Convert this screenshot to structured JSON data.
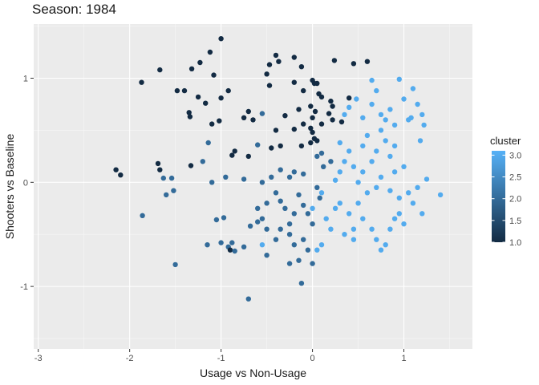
{
  "chart_data": {
    "type": "scatter",
    "title": "Season: 1984",
    "xlabel": "Usage vs Non-Usage",
    "ylabel": "Shooters vs Baseline",
    "xlim": [
      -3.05,
      1.75
    ],
    "ylim": [
      -1.6,
      1.52
    ],
    "x_ticks": [
      -3,
      -2,
      -1,
      0,
      1
    ],
    "x_tick_labels": [
      "-3",
      "-2",
      "-1",
      "0",
      "1"
    ],
    "y_ticks": [
      -1,
      0,
      1
    ],
    "y_tick_labels": [
      "-1",
      "0",
      "1"
    ],
    "grid": true,
    "legend": {
      "title": "cluster",
      "position": "right",
      "min": 1.0,
      "max": 3.1,
      "ticks": [
        1.0,
        1.5,
        2.0,
        2.5,
        3.0
      ],
      "tick_labels": [
        "1.0",
        "1.5",
        "2.0",
        "2.5",
        "3.0"
      ],
      "color_low": "#132b43",
      "color_high": "#56b1f7"
    },
    "colors": {
      "panel_background": "#ebebeb",
      "grid_major": "#ffffff",
      "low": "#132b43",
      "high": "#56b1f7"
    },
    "points": [
      {
        "x": -1.0,
        "y": 1.38,
        "c": 1
      },
      {
        "x": -1.12,
        "y": 1.25,
        "c": 1
      },
      {
        "x": -1.23,
        "y": 1.15,
        "c": 1
      },
      {
        "x": -1.32,
        "y": 1.09,
        "c": 1
      },
      {
        "x": -1.67,
        "y": 1.08,
        "c": 1
      },
      {
        "x": -1.87,
        "y": 0.96,
        "c": 1
      },
      {
        "x": -1.08,
        "y": 1.03,
        "c": 1
      },
      {
        "x": -1.25,
        "y": 0.82,
        "c": 1
      },
      {
        "x": -1.0,
        "y": 0.81,
        "c": 1
      },
      {
        "x": -1.48,
        "y": 0.88,
        "c": 1
      },
      {
        "x": -1.4,
        "y": 0.88,
        "c": 1
      },
      {
        "x": -1.17,
        "y": 0.76,
        "c": 1
      },
      {
        "x": -1.35,
        "y": 0.67,
        "c": 1
      },
      {
        "x": -1.34,
        "y": 0.63,
        "c": 1
      },
      {
        "x": -1.1,
        "y": 0.56,
        "c": 1
      },
      {
        "x": -1.02,
        "y": 0.59,
        "c": 1
      },
      {
        "x": -0.92,
        "y": 0.88,
        "c": 1
      },
      {
        "x": -0.7,
        "y": 0.68,
        "c": 1
      },
      {
        "x": -0.75,
        "y": 0.62,
        "c": 1
      },
      {
        "x": -0.65,
        "y": 0.6,
        "c": 1
      },
      {
        "x": -0.55,
        "y": 0.66,
        "c": 2
      },
      {
        "x": -0.47,
        "y": 0.93,
        "c": 1
      },
      {
        "x": -0.47,
        "y": 1.13,
        "c": 1
      },
      {
        "x": -0.4,
        "y": 1.22,
        "c": 1
      },
      {
        "x": -0.37,
        "y": 1.16,
        "c": 1
      },
      {
        "x": -0.2,
        "y": 1.2,
        "c": 1
      },
      {
        "x": -0.12,
        "y": 1.11,
        "c": 1
      },
      {
        "x": -0.5,
        "y": 1.04,
        "c": 1
      },
      {
        "x": -0.2,
        "y": 0.96,
        "c": 1
      },
      {
        "x": -0.1,
        "y": 0.88,
        "c": 1
      },
      {
        "x": 0.0,
        "y": 0.98,
        "c": 1
      },
      {
        "x": 0.02,
        "y": 0.95,
        "c": 1
      },
      {
        "x": 0.05,
        "y": 0.95,
        "c": 1
      },
      {
        "x": 0.07,
        "y": 0.85,
        "c": 1
      },
      {
        "x": 0.1,
        "y": 0.82,
        "c": 1
      },
      {
        "x": -0.02,
        "y": 0.73,
        "c": 1
      },
      {
        "x": -0.15,
        "y": 0.7,
        "c": 1
      },
      {
        "x": 0.2,
        "y": 0.78,
        "c": 1
      },
      {
        "x": 0.22,
        "y": 0.73,
        "c": 1
      },
      {
        "x": 0.24,
        "y": 1.17,
        "c": 1
      },
      {
        "x": 0.45,
        "y": 1.14,
        "c": 1
      },
      {
        "x": 0.6,
        "y": 1.16,
        "c": 1
      },
      {
        "x": 0.4,
        "y": 0.81,
        "c": 1
      },
      {
        "x": 0.03,
        "y": 0.68,
        "c": 1
      },
      {
        "x": 0.0,
        "y": 0.62,
        "c": 1
      },
      {
        "x": -0.1,
        "y": 0.56,
        "c": 1
      },
      {
        "x": -0.02,
        "y": 0.52,
        "c": 1
      },
      {
        "x": -0.2,
        "y": 0.51,
        "c": 1
      },
      {
        "x": -0.4,
        "y": 0.5,
        "c": 1
      },
      {
        "x": -0.3,
        "y": 0.64,
        "c": 1
      },
      {
        "x": 0.1,
        "y": 0.56,
        "c": 1
      },
      {
        "x": 0.18,
        "y": 0.66,
        "c": 1
      },
      {
        "x": 0.22,
        "y": 0.6,
        "c": 1
      },
      {
        "x": 0.32,
        "y": 0.58,
        "c": 1
      },
      {
        "x": 0.05,
        "y": 0.4,
        "c": 1
      },
      {
        "x": 0.0,
        "y": 0.48,
        "c": 1
      },
      {
        "x": -0.12,
        "y": 0.35,
        "c": 1
      },
      {
        "x": -0.02,
        "y": 0.38,
        "c": 1
      },
      {
        "x": 0.02,
        "y": 0.42,
        "c": 1
      },
      {
        "x": -0.35,
        "y": 0.35,
        "c": 1
      },
      {
        "x": -0.45,
        "y": 0.33,
        "c": 1
      },
      {
        "x": -0.6,
        "y": 0.36,
        "c": 2
      },
      {
        "x": -0.85,
        "y": 0.3,
        "c": 1
      },
      {
        "x": -0.88,
        "y": 0.26,
        "c": 1
      },
      {
        "x": -1.14,
        "y": 0.38,
        "c": 2
      },
      {
        "x": -1.33,
        "y": 0.16,
        "c": 1
      },
      {
        "x": -1.2,
        "y": 0.2,
        "c": 2
      },
      {
        "x": -1.69,
        "y": 0.18,
        "c": 1
      },
      {
        "x": -1.67,
        "y": 0.12,
        "c": 1
      },
      {
        "x": -1.63,
        "y": 0.04,
        "c": 2
      },
      {
        "x": -1.54,
        "y": 0.04,
        "c": 2
      },
      {
        "x": -1.6,
        "y": -0.12,
        "c": 2
      },
      {
        "x": -1.52,
        "y": -0.08,
        "c": 2
      },
      {
        "x": -2.15,
        "y": 0.12,
        "c": 1
      },
      {
        "x": -2.1,
        "y": 0.07,
        "c": 1
      },
      {
        "x": -1.86,
        "y": -0.32,
        "c": 2
      },
      {
        "x": -1.5,
        "y": -0.79,
        "c": 2
      },
      {
        "x": -1.1,
        "y": 0.0,
        "c": 2
      },
      {
        "x": -1.05,
        "y": -0.36,
        "c": 2
      },
      {
        "x": -0.97,
        "y": -0.34,
        "c": 2
      },
      {
        "x": -0.7,
        "y": 0.25,
        "c": 1
      },
      {
        "x": -0.95,
        "y": 0.05,
        "c": 2
      },
      {
        "x": -0.75,
        "y": 0.03,
        "c": 2
      },
      {
        "x": -0.55,
        "y": 0.0,
        "c": 2
      },
      {
        "x": -0.45,
        "y": 0.05,
        "c": 2
      },
      {
        "x": -0.35,
        "y": 0.12,
        "c": 2
      },
      {
        "x": -0.25,
        "y": 0.05,
        "c": 2
      },
      {
        "x": -0.2,
        "y": 0.1,
        "c": 2
      },
      {
        "x": -0.1,
        "y": 0.08,
        "c": 2
      },
      {
        "x": 0.05,
        "y": 0.25,
        "c": 2
      },
      {
        "x": 0.1,
        "y": 0.28,
        "c": 2
      },
      {
        "x": 0.12,
        "y": 0.15,
        "c": 2
      },
      {
        "x": 0.2,
        "y": 0.2,
        "c": 2
      },
      {
        "x": -0.6,
        "y": -0.25,
        "c": 2
      },
      {
        "x": -0.55,
        "y": -0.35,
        "c": 2
      },
      {
        "x": -0.5,
        "y": -0.2,
        "c": 2
      },
      {
        "x": -0.4,
        "y": -0.1,
        "c": 2
      },
      {
        "x": -0.35,
        "y": -0.18,
        "c": 2
      },
      {
        "x": -0.3,
        "y": -0.25,
        "c": 2
      },
      {
        "x": -0.25,
        "y": -0.4,
        "c": 2
      },
      {
        "x": -0.2,
        "y": -0.3,
        "c": 2
      },
      {
        "x": -0.15,
        "y": -0.12,
        "c": 2
      },
      {
        "x": -0.1,
        "y": -0.22,
        "c": 2
      },
      {
        "x": -0.05,
        "y": -0.3,
        "c": 2
      },
      {
        "x": 0.0,
        "y": -0.4,
        "c": 2
      },
      {
        "x": 0.05,
        "y": -0.05,
        "c": 2
      },
      {
        "x": 0.08,
        "y": -0.15,
        "c": 2
      },
      {
        "x": -0.88,
        "y": -0.58,
        "c": 2
      },
      {
        "x": -0.92,
        "y": -0.62,
        "c": 2
      },
      {
        "x": -1.0,
        "y": -0.58,
        "c": 2
      },
      {
        "x": -0.9,
        "y": -0.65,
        "c": 1
      },
      {
        "x": -0.85,
        "y": -0.66,
        "c": 2
      },
      {
        "x": -0.75,
        "y": -0.62,
        "c": 2
      },
      {
        "x": -0.68,
        "y": -0.42,
        "c": 2
      },
      {
        "x": -0.6,
        "y": -0.38,
        "c": 2
      },
      {
        "x": -0.5,
        "y": -0.45,
        "c": 2
      },
      {
        "x": -0.4,
        "y": -0.55,
        "c": 2
      },
      {
        "x": -0.35,
        "y": -0.45,
        "c": 2
      },
      {
        "x": -0.25,
        "y": -0.5,
        "c": 2
      },
      {
        "x": -0.2,
        "y": -0.6,
        "c": 2
      },
      {
        "x": -0.15,
        "y": -0.75,
        "c": 2
      },
      {
        "x": -0.1,
        "y": -0.55,
        "c": 2
      },
      {
        "x": -0.05,
        "y": -0.65,
        "c": 2
      },
      {
        "x": -0.12,
        "y": -0.97,
        "c": 2
      },
      {
        "x": -0.25,
        "y": -0.78,
        "c": 2
      },
      {
        "x": -0.5,
        "y": -0.7,
        "c": 2
      },
      {
        "x": -0.7,
        "y": -1.12,
        "c": 2
      },
      {
        "x": -1.15,
        "y": -0.6,
        "c": 2
      },
      {
        "x": 0.0,
        "y": -0.78,
        "c": 2
      },
      {
        "x": 0.05,
        "y": -0.65,
        "c": 3
      },
      {
        "x": 0.1,
        "y": -0.6,
        "c": 3
      },
      {
        "x": -0.55,
        "y": -0.6,
        "c": 3
      },
      {
        "x": 0.3,
        "y": 0.38,
        "c": 3
      },
      {
        "x": 0.35,
        "y": 0.2,
        "c": 3
      },
      {
        "x": 0.4,
        "y": 0.3,
        "c": 3
      },
      {
        "x": 0.45,
        "y": 0.15,
        "c": 3
      },
      {
        "x": 0.3,
        "y": 0.1,
        "c": 3
      },
      {
        "x": 0.35,
        "y": 0.65,
        "c": 3
      },
      {
        "x": 0.4,
        "y": 0.72,
        "c": 3
      },
      {
        "x": 0.48,
        "y": 0.8,
        "c": 3
      },
      {
        "x": 0.55,
        "y": 0.62,
        "c": 3
      },
      {
        "x": 0.6,
        "y": 0.45,
        "c": 3
      },
      {
        "x": 0.65,
        "y": 0.98,
        "c": 3
      },
      {
        "x": 0.7,
        "y": 0.88,
        "c": 3
      },
      {
        "x": 0.75,
        "y": 0.5,
        "c": 3
      },
      {
        "x": 0.8,
        "y": 0.6,
        "c": 3
      },
      {
        "x": 0.85,
        "y": 0.7,
        "c": 3
      },
      {
        "x": 0.9,
        "y": 0.55,
        "c": 3
      },
      {
        "x": 0.95,
        "y": 0.99,
        "c": 3
      },
      {
        "x": 1.0,
        "y": 0.8,
        "c": 3
      },
      {
        "x": 1.05,
        "y": 0.6,
        "c": 3
      },
      {
        "x": 1.1,
        "y": 0.9,
        "c": 3
      },
      {
        "x": 1.15,
        "y": 0.75,
        "c": 3
      },
      {
        "x": 1.2,
        "y": 0.65,
        "c": 3
      },
      {
        "x": 1.22,
        "y": 0.55,
        "c": 3
      },
      {
        "x": 1.18,
        "y": 0.4,
        "c": 3
      },
      {
        "x": 0.8,
        "y": 0.4,
        "c": 3
      },
      {
        "x": 0.7,
        "y": 0.3,
        "c": 3
      },
      {
        "x": 0.65,
        "y": 0.2,
        "c": 3
      },
      {
        "x": 0.55,
        "y": 0.1,
        "c": 3
      },
      {
        "x": 0.5,
        "y": 0.0,
        "c": 3
      },
      {
        "x": 0.6,
        "y": -0.1,
        "c": 3
      },
      {
        "x": 0.7,
        "y": -0.05,
        "c": 3
      },
      {
        "x": 0.75,
        "y": 0.05,
        "c": 3
      },
      {
        "x": 0.85,
        "y": -0.08,
        "c": 3
      },
      {
        "x": 0.9,
        "y": 0.1,
        "c": 3
      },
      {
        "x": 0.95,
        "y": -0.15,
        "c": 3
      },
      {
        "x": 1.0,
        "y": 0.15,
        "c": 3
      },
      {
        "x": 1.05,
        "y": -0.1,
        "c": 3
      },
      {
        "x": 1.1,
        "y": -0.2,
        "c": 3
      },
      {
        "x": 1.15,
        "y": -0.05,
        "c": 3
      },
      {
        "x": 1.25,
        "y": 0.03,
        "c": 3
      },
      {
        "x": 1.4,
        "y": -0.12,
        "c": 3
      },
      {
        "x": 1.2,
        "y": -0.3,
        "c": 3
      },
      {
        "x": 0.3,
        "y": -0.2,
        "c": 3
      },
      {
        "x": 0.25,
        "y": -0.25,
        "c": 3
      },
      {
        "x": 0.15,
        "y": -0.35,
        "c": 3
      },
      {
        "x": 0.2,
        "y": -0.45,
        "c": 3
      },
      {
        "x": 0.35,
        "y": -0.5,
        "c": 3
      },
      {
        "x": 0.45,
        "y": -0.55,
        "c": 3
      },
      {
        "x": 0.55,
        "y": -0.35,
        "c": 3
      },
      {
        "x": 0.65,
        "y": -0.45,
        "c": 3
      },
      {
        "x": 0.7,
        "y": -0.55,
        "c": 3
      },
      {
        "x": 0.75,
        "y": -0.65,
        "c": 3
      },
      {
        "x": 0.8,
        "y": -0.6,
        "c": 3
      },
      {
        "x": 0.85,
        "y": -0.45,
        "c": 3
      },
      {
        "x": 0.9,
        "y": -0.35,
        "c": 3
      },
      {
        "x": 0.95,
        "y": -0.3,
        "c": 3
      },
      {
        "x": 1.0,
        "y": -0.4,
        "c": 3
      },
      {
        "x": 0.4,
        "y": -0.3,
        "c": 3
      },
      {
        "x": 0.5,
        "y": -0.2,
        "c": 3
      },
      {
        "x": 0.1,
        "y": -0.1,
        "c": 3
      },
      {
        "x": 0.0,
        "y": -0.25,
        "c": 3
      },
      {
        "x": 0.45,
        "y": -0.45,
        "c": 3
      },
      {
        "x": 0.25,
        "y": 0.02,
        "c": 3
      },
      {
        "x": 0.65,
        "y": 0.75,
        "c": 3
      },
      {
        "x": 0.9,
        "y": 0.35,
        "c": 3
      },
      {
        "x": 0.75,
        "y": 0.65,
        "c": 3
      },
      {
        "x": 1.08,
        "y": 0.62,
        "c": 3
      },
      {
        "x": 0.85,
        "y": 0.25,
        "c": 3
      },
      {
        "x": 0.55,
        "y": 0.35,
        "c": 3
      }
    ]
  }
}
